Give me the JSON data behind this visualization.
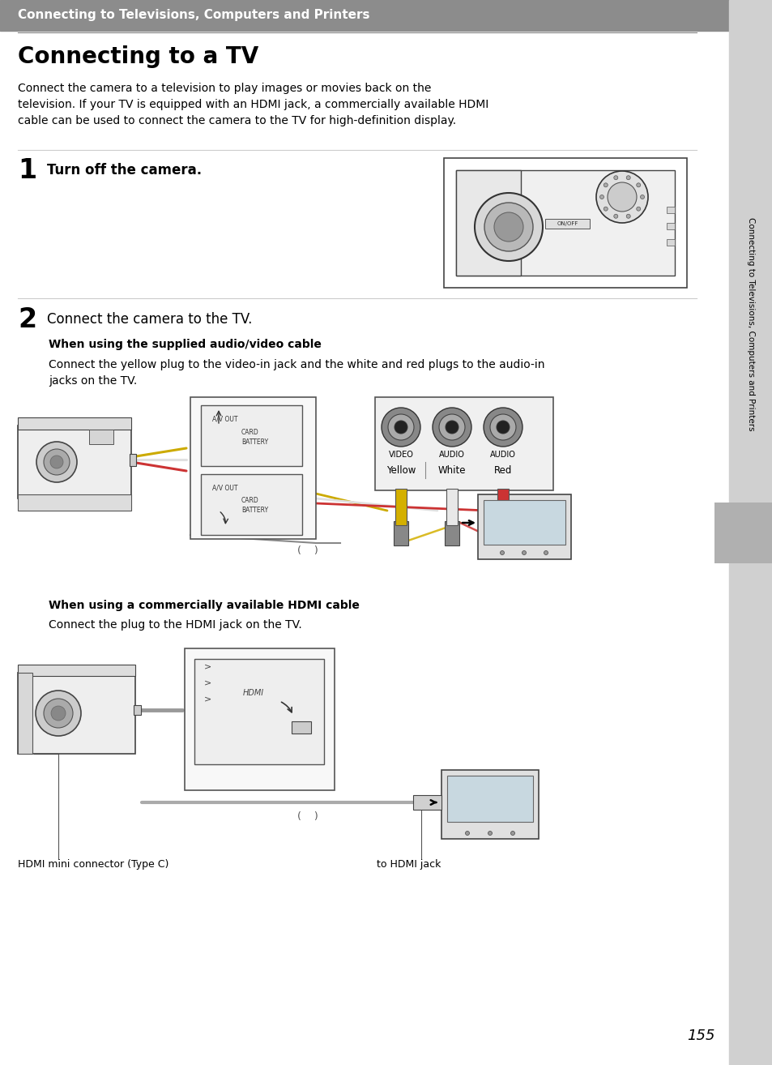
{
  "page_bg": "#ffffff",
  "header_bg": "#8c8c8c",
  "header_text": "Connecting to Televisions, Computers and Printers",
  "header_text_color": "#ffffff",
  "title": "Connecting to a TV",
  "title_color": "#000000",
  "body_text": "Connect the camera to a television to play images or movies back on the\ntelevision. If your TV is equipped with an HDMI jack, a commercially available HDMI\ncable can be used to connect the camera to the TV for high-definition display.",
  "step1_num": "1",
  "step1_text": "Turn off the camera.",
  "step2_num": "2",
  "step2_text": "Connect the camera to the TV.",
  "sub1_bold": "When using the supplied audio/video cable",
  "sub1_text": "Connect the yellow plug to the video-in jack and the white and red plugs to the audio-in\njacks on the TV.",
  "label_yellow": "Yellow",
  "label_white": "White",
  "label_red": "Red",
  "label_video": "VIDEO",
  "label_audio1": "AUDIO",
  "label_audio2": "AUDIO",
  "sub2_bold": "When using a commercially available HDMI cable",
  "sub2_text": "Connect the plug to the HDMI jack on the TV.",
  "label_hdmi": "HDMI mini connector (Type C)",
  "label_hdmi_jack": "to HDMI jack",
  "sidebar_text": "Connecting to Televisions, Computers and Printers",
  "sidebar_bg": "#d0d0d0",
  "sidebar_text_color": "#000000",
  "page_number": "155",
  "tab_bg": "#b0b0b0",
  "line_color": "#cccccc",
  "header_line_color": "#888888"
}
